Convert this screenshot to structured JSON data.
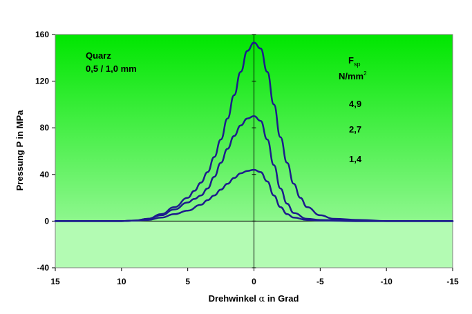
{
  "chart_data": {
    "type": "line",
    "xlabel_prefix": "Drehwinkel ",
    "xlabel_symbol": "α",
    "xlabel_suffix": " in Grad",
    "ylabel": "Pressung P in MPa",
    "xlim": [
      15,
      -15
    ],
    "ylim": [
      -40,
      160
    ],
    "x_ticks": [
      "15",
      "10",
      "5",
      "0",
      "-5",
      "-10",
      "-15"
    ],
    "y_ticks": [
      "160",
      "120",
      "80",
      "40",
      "0",
      "-40"
    ],
    "annotation": {
      "line1": "Quarz",
      "line2": "0,5 / 1,0 mm"
    },
    "legend_title": {
      "main": "F",
      "sub": "sp",
      "unit": "N/mm",
      "unit_sup": "2"
    },
    "legend_values": [
      "4,9",
      "2,7",
      "1,4"
    ],
    "series": [
      {
        "label": "4,9",
        "x": [
          15,
          12,
          10,
          9,
          8,
          7,
          6,
          5,
          4.5,
          4,
          3.5,
          3,
          2.5,
          2,
          1.5,
          1,
          0.5,
          0,
          -0.5,
          -1,
          -1.5,
          -2,
          -2.5,
          -3,
          -3.5,
          -4,
          -5,
          -6,
          -8,
          -10,
          -12,
          -15
        ],
        "y": [
          0,
          0,
          0,
          0.5,
          2,
          6,
          12,
          20,
          26,
          33,
          42,
          55,
          70,
          88,
          108,
          128,
          146,
          153,
          148,
          128,
          100,
          72,
          50,
          32,
          20,
          12,
          5,
          2,
          1,
          0,
          0,
          0
        ]
      },
      {
        "label": "2,7",
        "x": [
          15,
          12,
          10,
          9,
          8,
          7,
          6,
          5,
          4.5,
          4,
          3.5,
          3,
          2.5,
          2,
          1.5,
          1,
          0.5,
          0,
          -0.5,
          -1,
          -1.5,
          -2,
          -2.5,
          -3,
          -4,
          -5,
          -8,
          -15
        ],
        "y": [
          0,
          0,
          0,
          0.5,
          2,
          5,
          10,
          16,
          19,
          22,
          28,
          38,
          50,
          62,
          73,
          82,
          88,
          90,
          86,
          70,
          48,
          28,
          15,
          7,
          2,
          1,
          0,
          0
        ]
      },
      {
        "label": "1,4",
        "x": [
          15,
          12,
          10,
          9,
          8,
          7,
          6,
          5,
          4,
          3.5,
          3,
          2.5,
          2,
          1.5,
          1,
          0.5,
          0,
          -0.5,
          -1,
          -1.5,
          -2,
          -2.5,
          -3,
          -4,
          -5,
          -8,
          -15
        ],
        "y": [
          0,
          0,
          0,
          0.5,
          1,
          3,
          6,
          9,
          14,
          18,
          22,
          27,
          32,
          37,
          41,
          43,
          44,
          42,
          34,
          22,
          12,
          6,
          3,
          1,
          0.5,
          0,
          0
        ]
      }
    ],
    "line_color": "#1c1c8c",
    "plot_bg_top": "#00e600",
    "plot_bg_mid": "#8ef78e",
    "plot_bg_bottom": "#b3fbb3",
    "grid": false,
    "legend": "right, inside plot"
  }
}
